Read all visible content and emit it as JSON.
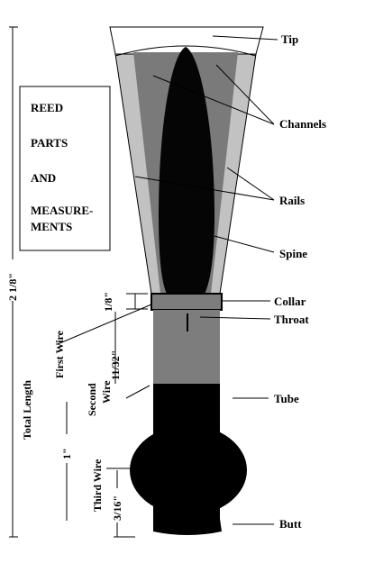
{
  "title_box": {
    "lines": [
      "REED",
      "PARTS",
      "AND",
      "MEASURE-",
      "MENTS"
    ]
  },
  "part_labels": {
    "tip": "Tip",
    "channels": "Channels",
    "rails": "Rails",
    "spine": "Spine",
    "collar": "Collar",
    "throat": "Throat",
    "tube": "Tube",
    "butt": "Butt"
  },
  "measurements": {
    "overall": "2 1/8\"",
    "collar_to_first_wire": "1/8\"",
    "first_to_second_wire": "11/32\"",
    "tube_length": "1\"",
    "third_wire_to_butt": "3/16\""
  },
  "wire_labels": {
    "first": "First Wire",
    "second_line1": "Second",
    "second_line2": "Wire",
    "third": "Third Wire"
  },
  "total_length_label": "Total Length",
  "colors": {
    "black": "#000000",
    "spine_fill": "#050505",
    "channel_fill": "#7a7a7a",
    "rail_fill": "#c2c2c2",
    "tube_gray": "#7d7d7d",
    "tip_fill": "#ffffff"
  }
}
